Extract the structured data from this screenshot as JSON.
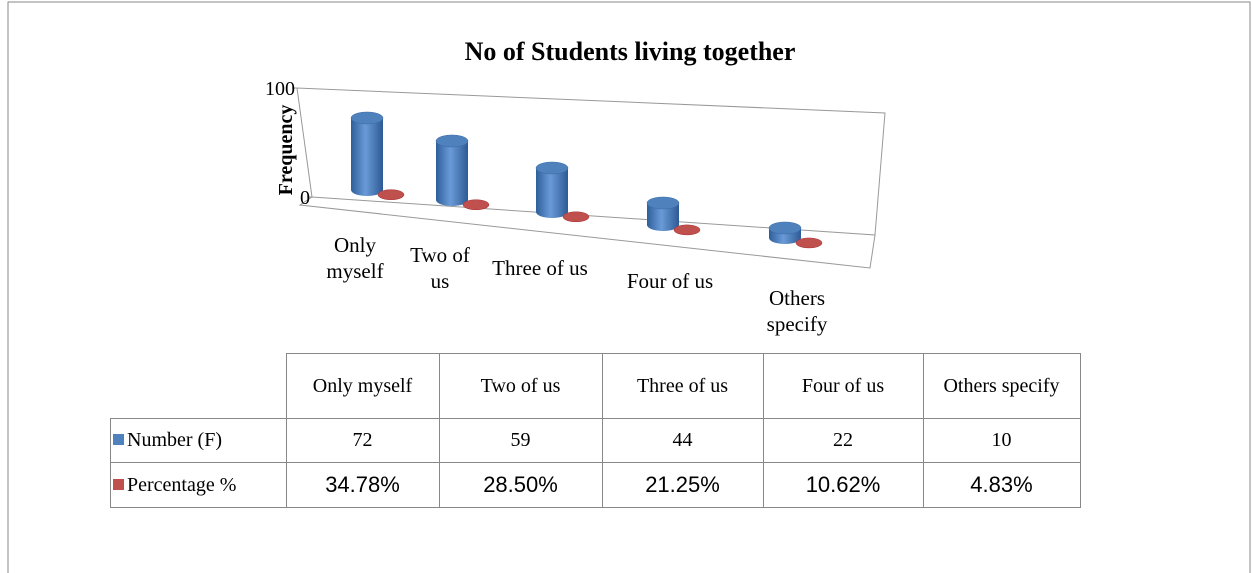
{
  "chart_data": {
    "type": "bar3d",
    "title": "No of Students living together",
    "y_label": "Frequency",
    "categories": [
      "Only myself",
      "Two of us",
      "Three of us",
      "Four of us",
      "Others specify"
    ],
    "series": [
      {
        "name": "Number (F)",
        "color": "#4f81bd",
        "values": [
          72,
          59,
          44,
          22,
          10
        ]
      },
      {
        "name": "Percentage %",
        "color": "#c0504d",
        "values": [
          0.3478,
          0.285,
          0.2125,
          0.1062,
          0.0483
        ],
        "value_labels": [
          "34.78%",
          "28.50%",
          "21.25%",
          "10.62%",
          "4.83%"
        ]
      }
    ],
    "ylim": [
      0,
      100
    ],
    "yticks": [
      0,
      100
    ]
  }
}
